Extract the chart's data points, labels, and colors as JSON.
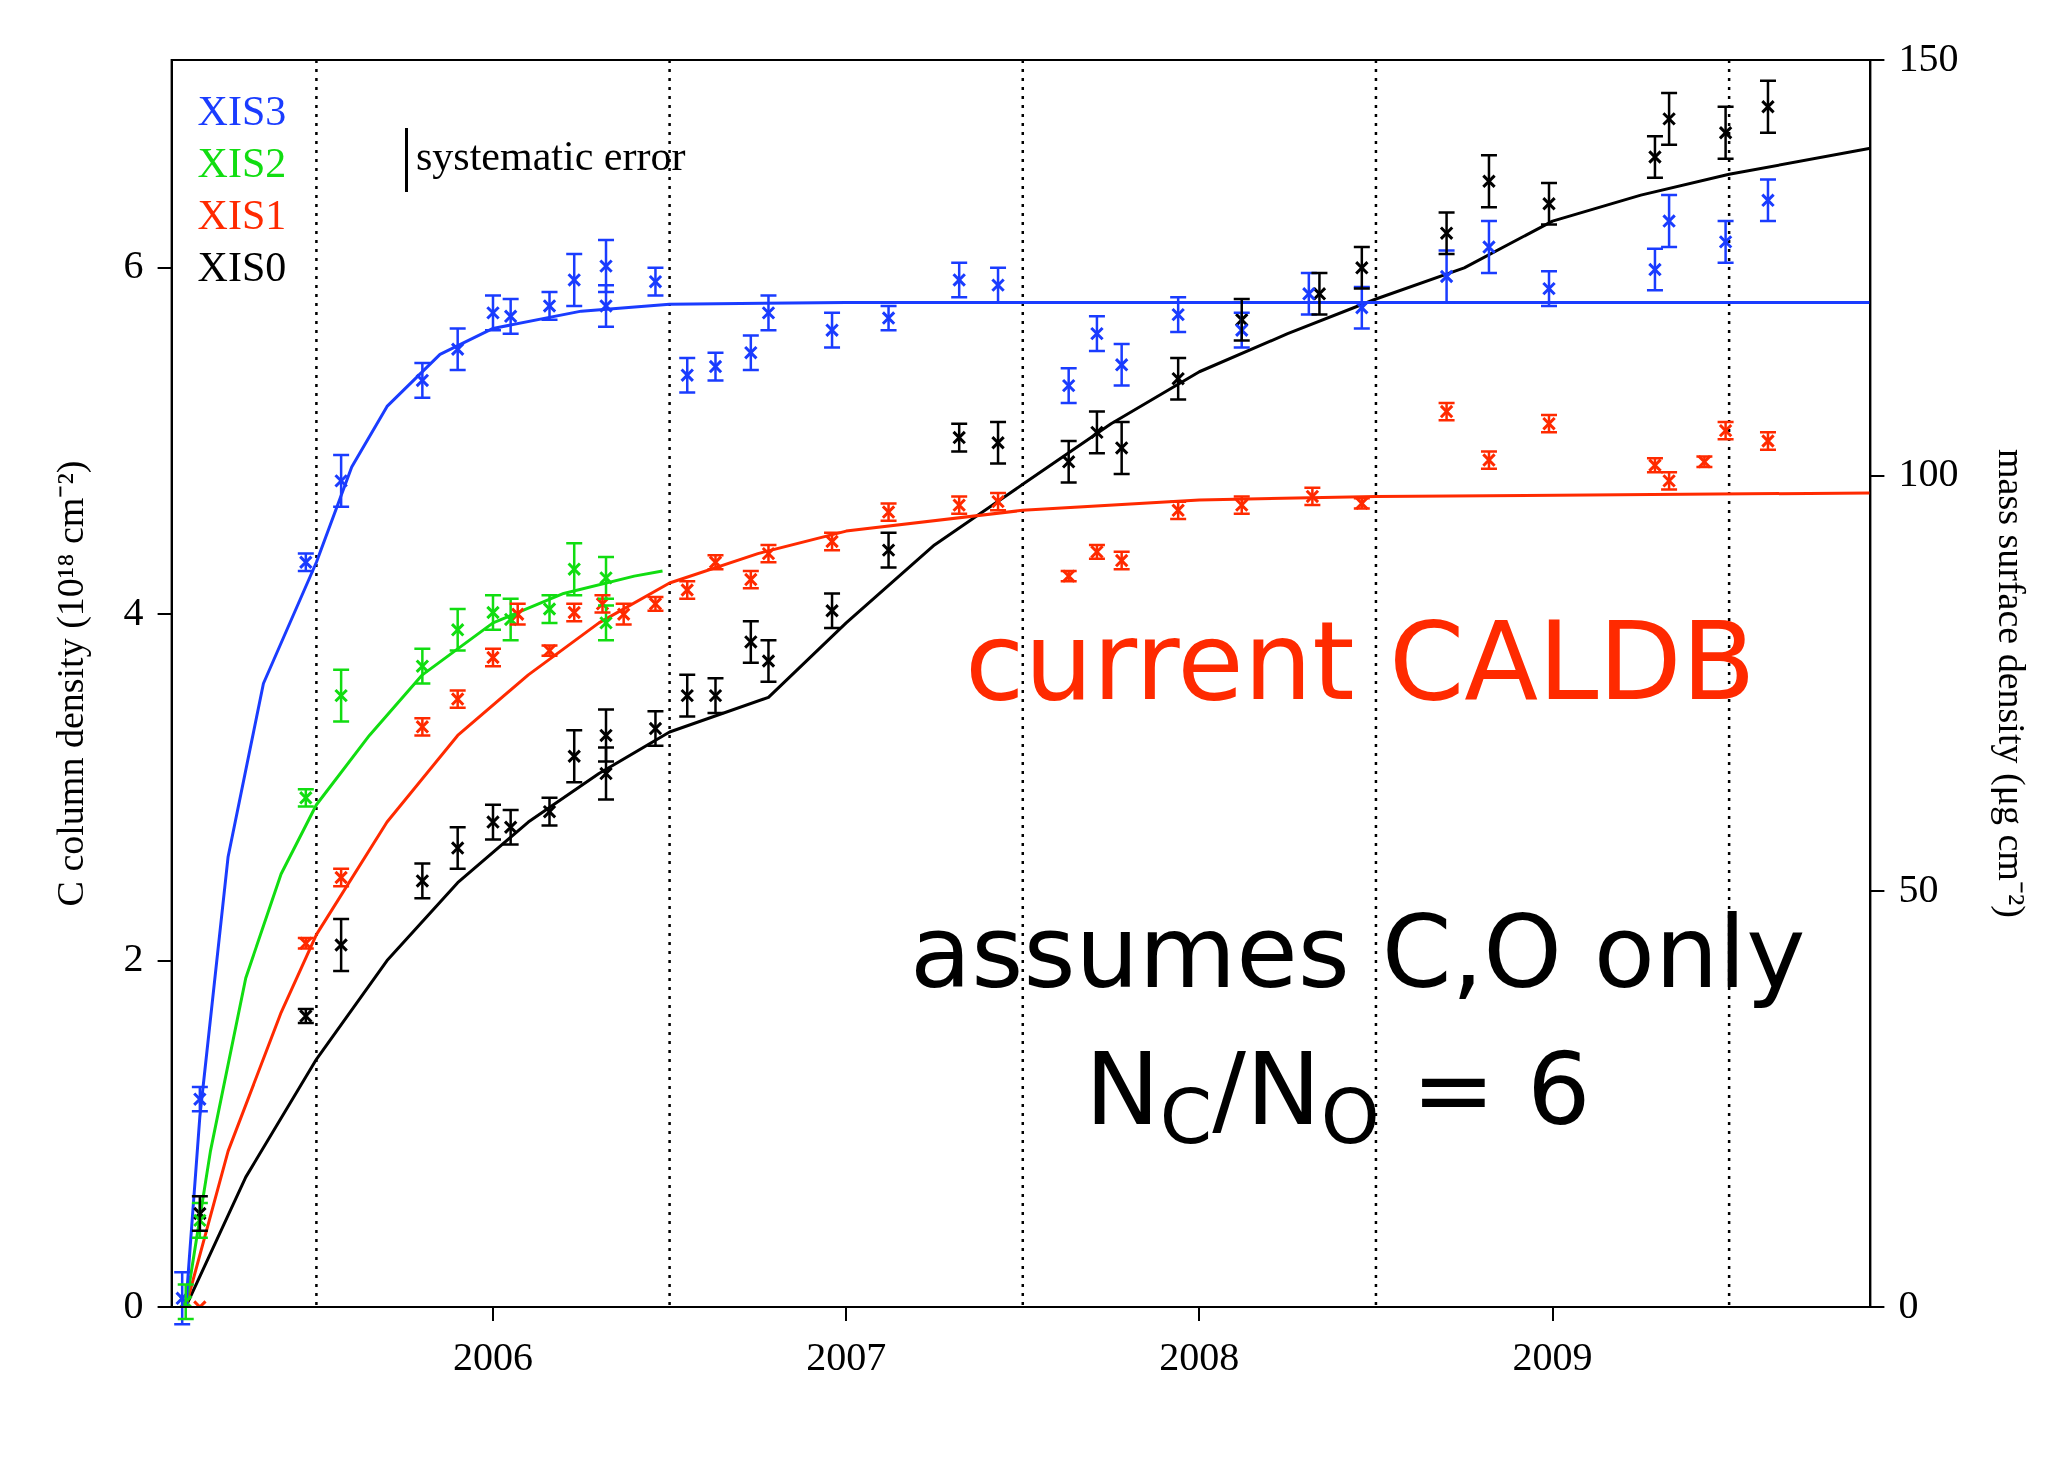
{
  "chart_data": {
    "type": "scatter",
    "ylabel": "C column density (10¹⁸ cm⁻²)",
    "y2label": "mass surface density (μg cm⁻²)",
    "xlim": [
      2005.59,
      2010.4
    ],
    "xticks": [
      {
        "value": 2006.5,
        "label": "2006"
      },
      {
        "value": 2007.5,
        "label": "2007"
      },
      {
        "value": 2008.5,
        "label": "2008"
      },
      {
        "value": 2009.5,
        "label": "2009"
      }
    ],
    "ylim": [
      0,
      7.2
    ],
    "yticks": [
      0,
      2,
      4,
      6
    ],
    "y2lim": [
      0,
      150
    ],
    "y2ticks": [
      0,
      50,
      100,
      150
    ],
    "legend": "top left",
    "marker": "cross",
    "ref_lines": [
      {
        "axis": "x",
        "value": 2006,
        "line_style": "dotted",
        "color": "#000000"
      },
      {
        "axis": "x",
        "value": 2007,
        "line_style": "dotted",
        "color": "#000000"
      },
      {
        "axis": "x",
        "value": 2008,
        "line_style": "dotted",
        "color": "#000000"
      },
      {
        "axis": "x",
        "value": 2009,
        "line_style": "dotted",
        "color": "#000000"
      },
      {
        "axis": "x",
        "value": 2010,
        "line_style": "dotted",
        "color": "#000000"
      }
    ],
    "annotations": [
      "systematic error",
      "current CALDB",
      "assumes C,O only",
      "N$_{C}$/N$_{O}$ = 6"
    ],
    "series": [
      {
        "name": "XIS3",
        "color": "#1a3cff",
        "x": [
          2005.62,
          2005.67,
          2005.97,
          2006.07,
          2006.3,
          2006.4,
          2006.5,
          2006.55,
          2006.66,
          2006.73,
          2006.82,
          2006.82,
          2006.96,
          2007.05,
          2007.13,
          2007.23,
          2007.28,
          2007.46,
          2007.62,
          2007.82,
          2007.93,
          2008.13,
          2008.21,
          2008.28,
          2008.44,
          2008.62,
          2008.81,
          2008.96,
          2009.2,
          2009.32,
          2009.49,
          2009.79,
          2009.83,
          2009.99,
          2010.11
        ],
        "values": [
          0.05,
          1.2,
          4.3,
          4.77,
          5.35,
          5.53,
          5.74,
          5.72,
          5.78,
          5.93,
          6.01,
          5.78,
          5.92,
          5.38,
          5.43,
          5.51,
          5.74,
          5.64,
          5.71,
          5.93,
          5.9,
          5.32,
          5.62,
          5.44,
          5.73,
          5.64,
          5.85,
          5.77,
          5.95,
          6.12,
          5.88,
          5.99,
          6.27,
          6.15,
          6.39
        ],
        "errors": [
          0.15,
          0.07,
          0.05,
          0.15,
          0.1,
          0.12,
          0.1,
          0.1,
          0.08,
          0.15,
          0.15,
          0.12,
          0.08,
          0.1,
          0.08,
          0.1,
          0.1,
          0.1,
          0.07,
          0.1,
          0.1,
          0.1,
          0.1,
          0.12,
          0.1,
          0.1,
          0.12,
          0.12,
          0.15,
          0.15,
          0.1,
          0.12,
          0.15,
          0.12,
          0.12
        ]
      },
      {
        "name": "XIS2",
        "color": "#11dd11",
        "x": [
          2005.63,
          2005.67,
          2005.97,
          2006.07,
          2006.3,
          2006.4,
          2006.5,
          2006.55,
          2006.66,
          2006.73,
          2006.82,
          2006.82
        ],
        "values": [
          0.03,
          0.5,
          2.94,
          3.53,
          3.7,
          3.91,
          4.01,
          3.97,
          4.03,
          4.26,
          4.21,
          3.95
        ],
        "errors": [
          0.1,
          0.1,
          0.05,
          0.15,
          0.1,
          0.12,
          0.1,
          0.12,
          0.08,
          0.15,
          0.12,
          0.1
        ]
      },
      {
        "name": "XIS1",
        "color": "#ff2a00",
        "x": [
          2005.67,
          2005.97,
          2006.07,
          2006.3,
          2006.4,
          2006.5,
          2006.57,
          2006.66,
          2006.73,
          2006.81,
          2006.87,
          2006.96,
          2007.05,
          2007.13,
          2007.23,
          2007.28,
          2007.46,
          2007.62,
          2007.82,
          2007.93,
          2008.13,
          2008.21,
          2008.28,
          2008.44,
          2008.62,
          2008.82,
          2008.96,
          2009.2,
          2009.32,
          2009.49,
          2009.79,
          2009.83,
          2009.93,
          2009.99,
          2010.11
        ],
        "values": [
          0,
          2.1,
          2.48,
          3.35,
          3.51,
          3.75,
          4.0,
          3.79,
          4.01,
          4.06,
          4.0,
          4.06,
          4.14,
          4.3,
          4.2,
          4.35,
          4.42,
          4.59,
          4.63,
          4.65,
          4.22,
          4.36,
          4.31,
          4.6,
          4.63,
          4.68,
          4.64,
          5.17,
          4.89,
          5.1,
          4.86,
          4.77,
          4.88,
          5.06,
          5.0
        ],
        "errors": [
          null,
          0.03,
          0.05,
          0.05,
          0.05,
          0.05,
          0.06,
          0.03,
          0.05,
          0.05,
          0.06,
          0.04,
          0.05,
          0.04,
          0.05,
          0.05,
          0.05,
          0.05,
          0.05,
          0.05,
          0.03,
          0.04,
          0.05,
          0.05,
          0.05,
          0.05,
          0.03,
          0.05,
          0.05,
          0.05,
          0.04,
          0.05,
          0.03,
          0.05,
          0.05
        ]
      },
      {
        "name": "XIS0",
        "color": "#000000",
        "x": [
          2005.67,
          2005.97,
          2006.07,
          2006.3,
          2006.4,
          2006.5,
          2006.55,
          2006.66,
          2006.73,
          2006.82,
          2006.82,
          2006.96,
          2007.05,
          2007.13,
          2007.23,
          2007.28,
          2007.46,
          2007.62,
          2007.82,
          2007.93,
          2008.13,
          2008.21,
          2008.28,
          2008.44,
          2008.62,
          2008.84,
          2008.96,
          2009.2,
          2009.32,
          2009.49,
          2009.79,
          2009.83,
          2009.99,
          2010.11
        ],
        "values": [
          0.54,
          1.68,
          2.09,
          2.46,
          2.65,
          2.8,
          2.77,
          2.86,
          3.18,
          3.3,
          3.08,
          3.34,
          3.53,
          3.53,
          3.84,
          3.73,
          4.02,
          4.37,
          5.02,
          4.99,
          4.88,
          5.05,
          4.96,
          5.36,
          5.7,
          5.85,
          6.0,
          6.2,
          6.5,
          6.37,
          6.64,
          6.86,
          6.78,
          6.93
        ],
        "errors": [
          0.1,
          0.04,
          0.15,
          0.1,
          0.12,
          0.1,
          0.1,
          0.08,
          0.15,
          0.15,
          0.15,
          0.1,
          0.12,
          0.1,
          0.12,
          0.12,
          0.1,
          0.1,
          0.08,
          0.12,
          0.12,
          0.12,
          0.15,
          0.12,
          0.12,
          0.12,
          0.12,
          0.12,
          0.15,
          0.12,
          0.12,
          0.15,
          0.15,
          0.15
        ]
      },
      {
        "type": "line",
        "marker": "none",
        "color": "#1a3cff",
        "x": [
          2005.63,
          2005.67,
          2005.75,
          2005.85,
          2006,
          2006.1,
          2006.2,
          2006.35,
          2006.5,
          2006.75,
          2007,
          2007.5,
          2010.4
        ],
        "values": [
          0,
          1.1,
          2.6,
          3.6,
          4.3,
          4.85,
          5.2,
          5.5,
          5.65,
          5.75,
          5.79,
          5.8,
          5.8
        ]
      },
      {
        "type": "line",
        "marker": "none",
        "color": "#11dd11",
        "x": [
          2005.63,
          2005.7,
          2005.8,
          2005.9,
          2006,
          2006.15,
          2006.3,
          2006.5,
          2006.7,
          2006.9,
          2006.98
        ],
        "values": [
          0,
          0.9,
          1.9,
          2.5,
          2.9,
          3.3,
          3.65,
          3.95,
          4.12,
          4.22,
          4.25
        ]
      },
      {
        "type": "line",
        "marker": "none",
        "color": "#ff2a00",
        "x": [
          2005.63,
          2005.75,
          2005.9,
          2006,
          2006.2,
          2006.4,
          2006.6,
          2006.8,
          2007,
          2007.25,
          2007.5,
          2008,
          2008.5,
          2009,
          2010.4
        ],
        "values": [
          0,
          0.9,
          1.7,
          2.15,
          2.8,
          3.3,
          3.65,
          3.95,
          4.18,
          4.35,
          4.48,
          4.6,
          4.66,
          4.68,
          4.7
        ]
      },
      {
        "type": "line",
        "marker": "none",
        "color": "#000000",
        "x": [
          2005.63,
          2005.8,
          2006,
          2006.2,
          2006.4,
          2006.6,
          2006.8,
          2007,
          2007.28,
          2007.5,
          2007.75,
          2008,
          2008.25,
          2008.5,
          2008.75,
          2009,
          2009.25,
          2009.5,
          2009.75,
          2010,
          2010.4
        ],
        "values": [
          0,
          0.75,
          1.43,
          2.0,
          2.45,
          2.8,
          3.08,
          3.32,
          3.52,
          3.95,
          4.4,
          4.75,
          5.1,
          5.4,
          5.62,
          5.82,
          6.0,
          6.27,
          6.42,
          6.54,
          6.69
        ]
      }
    ]
  }
}
